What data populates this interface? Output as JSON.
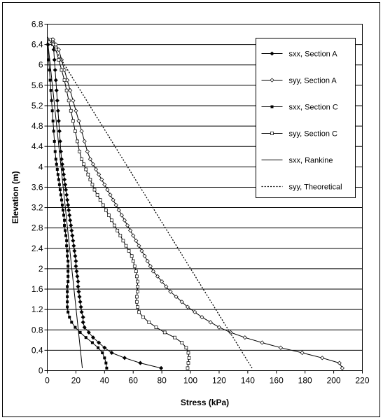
{
  "chart_data": {
    "type": "line",
    "title": "",
    "xlabel": "Stress (kPa)",
    "ylabel": "Elevation (m)",
    "xlim": [
      0,
      220
    ],
    "ylim": [
      0,
      6.8
    ],
    "xticks": [
      0,
      20,
      40,
      60,
      80,
      100,
      120,
      140,
      160,
      180,
      200,
      220
    ],
    "yticks": [
      0,
      0.4,
      0.8,
      1.2,
      1.6,
      2,
      2.4,
      2.8,
      3.2,
      3.6,
      4,
      4.4,
      4.8,
      5.2,
      5.6,
      6,
      6.4,
      6.8
    ],
    "ytick_labels": [
      "0",
      "0.4",
      "0.8",
      "1.2",
      "1.6",
      "2",
      "2.4",
      "2.8",
      "3.2",
      "3.6",
      "4",
      "4.4",
      "4.8",
      "5.2",
      "5.6",
      "6",
      "6.4",
      "6.8"
    ],
    "grid": "horizontal",
    "legend_position": "top-right",
    "series": [
      {
        "name": "sxx, Section A",
        "style": "solid-diamond",
        "x": [
          79.5,
          65,
          54,
          45,
          40,
          36,
          32,
          29,
          26,
          25,
          25,
          24,
          23.5,
          23,
          22.5,
          22,
          21.5,
          21.5,
          21,
          20.5,
          20,
          20,
          19.5,
          19,
          18.5,
          18,
          17.5,
          17,
          16.5,
          16,
          15.5,
          15,
          14.5,
          14,
          13.5,
          13,
          12.5,
          12,
          11.5,
          11,
          10.5,
          10,
          9.5,
          9,
          8.5,
          8,
          7.5,
          7,
          6.5,
          6,
          5.5,
          5,
          4.5,
          4
        ],
        "y": [
          0.05,
          0.15,
          0.25,
          0.35,
          0.45,
          0.55,
          0.65,
          0.75,
          0.85,
          0.95,
          1.05,
          1.15,
          1.25,
          1.35,
          1.45,
          1.55,
          1.65,
          1.75,
          1.85,
          1.95,
          2.05,
          2.15,
          2.25,
          2.35,
          2.45,
          2.55,
          2.65,
          2.75,
          2.85,
          2.95,
          3.05,
          3.15,
          3.25,
          3.35,
          3.45,
          3.55,
          3.65,
          3.75,
          3.85,
          3.95,
          4.05,
          4.15,
          4.3,
          4.5,
          4.7,
          4.9,
          5.1,
          5.3,
          5.5,
          5.7,
          5.9,
          6.1,
          6.3,
          6.5
        ]
      },
      {
        "name": "syy, Section A",
        "style": "open-diamond",
        "x": [
          206,
          204,
          192,
          178,
          163,
          150,
          138,
          128,
          120,
          114,
          108,
          103,
          98,
          94,
          90,
          86,
          83,
          80,
          77,
          74,
          72,
          70,
          68,
          66,
          64,
          62,
          60,
          58,
          56,
          54,
          52,
          50,
          48,
          46,
          44,
          42,
          40,
          38,
          36,
          34,
          32,
          30,
          28,
          26,
          24,
          22,
          20,
          18,
          16,
          14,
          12,
          10,
          8,
          6,
          4
        ],
        "y": [
          0.05,
          0.15,
          0.25,
          0.35,
          0.45,
          0.55,
          0.65,
          0.75,
          0.85,
          0.95,
          1.05,
          1.15,
          1.25,
          1.35,
          1.45,
          1.55,
          1.65,
          1.75,
          1.85,
          1.95,
          2.05,
          2.15,
          2.25,
          2.35,
          2.45,
          2.55,
          2.65,
          2.75,
          2.85,
          2.95,
          3.05,
          3.15,
          3.25,
          3.35,
          3.45,
          3.55,
          3.65,
          3.75,
          3.85,
          3.95,
          4.05,
          4.15,
          4.3,
          4.5,
          4.7,
          4.9,
          5.1,
          5.3,
          5.5,
          5.7,
          5.9,
          6.1,
          6.3,
          6.4,
          6.5
        ]
      },
      {
        "name": "sxx, Section C",
        "style": "solid-square",
        "x": [
          41.5,
          41,
          40,
          38.5,
          35.5,
          31.5,
          27,
          23,
          19.5,
          17,
          15.5,
          14.5,
          14,
          14,
          14,
          14,
          14,
          14.5,
          14.5,
          14.5,
          14.5,
          14.5,
          14,
          14,
          13.5,
          13.5,
          13,
          12.5,
          12,
          12,
          11.5,
          11,
          10.5,
          10,
          9.5,
          9,
          8.5,
          8,
          7.5,
          7,
          6.5,
          6,
          5.5,
          5,
          4.5,
          4,
          3.5,
          3,
          2.5,
          2,
          1.5,
          1,
          0.5
        ],
        "y": [
          0.05,
          0.15,
          0.25,
          0.35,
          0.45,
          0.55,
          0.65,
          0.75,
          0.85,
          0.95,
          1.05,
          1.15,
          1.25,
          1.35,
          1.45,
          1.55,
          1.65,
          1.75,
          1.85,
          1.95,
          2.05,
          2.15,
          2.25,
          2.35,
          2.45,
          2.55,
          2.65,
          2.75,
          2.85,
          2.95,
          3.05,
          3.15,
          3.25,
          3.35,
          3.45,
          3.55,
          3.65,
          3.75,
          3.85,
          3.95,
          4.05,
          4.15,
          4.3,
          4.5,
          4.7,
          4.9,
          5.1,
          5.3,
          5.5,
          5.7,
          5.9,
          6.1,
          6.4
        ]
      },
      {
        "name": "syy, Section C",
        "style": "open-square",
        "x": [
          98,
          98.5,
          99,
          98.5,
          97,
          94,
          89,
          82,
          76,
          71,
          67,
          64,
          63,
          62.5,
          62.5,
          63,
          63,
          63,
          62.5,
          62,
          61,
          60,
          59,
          57,
          55,
          53,
          51,
          49,
          47,
          45,
          43,
          41,
          39,
          37,
          35,
          33,
          31.5,
          30,
          28.5,
          27,
          25.5,
          24,
          22.5,
          21,
          19.5,
          18,
          16.5,
          15,
          13.5,
          12,
          10,
          8,
          6,
          4,
          2
        ],
        "y": [
          0.05,
          0.15,
          0.25,
          0.35,
          0.45,
          0.55,
          0.65,
          0.75,
          0.85,
          0.95,
          1.05,
          1.15,
          1.25,
          1.35,
          1.45,
          1.55,
          1.65,
          1.75,
          1.85,
          1.95,
          2.05,
          2.15,
          2.25,
          2.35,
          2.45,
          2.55,
          2.65,
          2.75,
          2.85,
          2.95,
          3.05,
          3.15,
          3.25,
          3.35,
          3.45,
          3.55,
          3.65,
          3.75,
          3.85,
          3.95,
          4.05,
          4.15,
          4.3,
          4.5,
          4.7,
          4.9,
          5.1,
          5.3,
          5.5,
          5.7,
          5.9,
          6.1,
          6.3,
          6.4,
          6.5
        ]
      },
      {
        "name": "sxx, Rankine",
        "style": "thin-line",
        "x": [
          0,
          24.5
        ],
        "y": [
          6.55,
          0.05
        ]
      },
      {
        "name": "syy, Theoretical",
        "style": "dotted-line",
        "x": [
          0,
          143
        ],
        "y": [
          6.55,
          0.05
        ]
      }
    ]
  }
}
